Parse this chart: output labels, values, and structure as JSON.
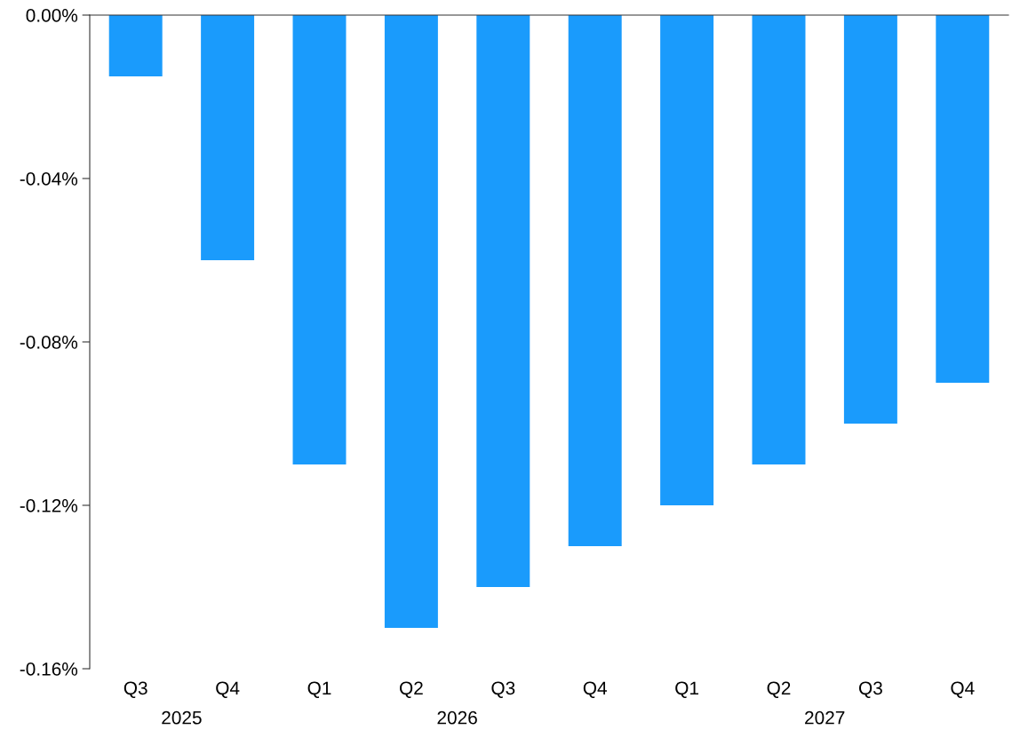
{
  "chart_data": {
    "type": "bar",
    "categories": [
      "Q3",
      "Q4",
      "Q1",
      "Q2",
      "Q3",
      "Q4",
      "Q1",
      "Q2",
      "Q3",
      "Q4"
    ],
    "values": [
      -0.015,
      -0.06,
      -0.11,
      -0.15,
      -0.14,
      -0.13,
      -0.12,
      -0.11,
      -0.1,
      -0.09
    ],
    "color": "#1a9bfc",
    "ylim": [
      -0.16,
      0
    ],
    "yticks": [
      {
        "value": 0,
        "label": "0.00%"
      },
      {
        "value": -0.04,
        "label": "-0.04%"
      },
      {
        "value": -0.08,
        "label": "-0.08%"
      },
      {
        "value": -0.12,
        "label": "-0.12%"
      },
      {
        "value": -0.16,
        "label": "-0.16%"
      }
    ],
    "annotations": [
      "2025",
      "2026",
      "2027"
    ],
    "grid": false,
    "legend": false
  }
}
